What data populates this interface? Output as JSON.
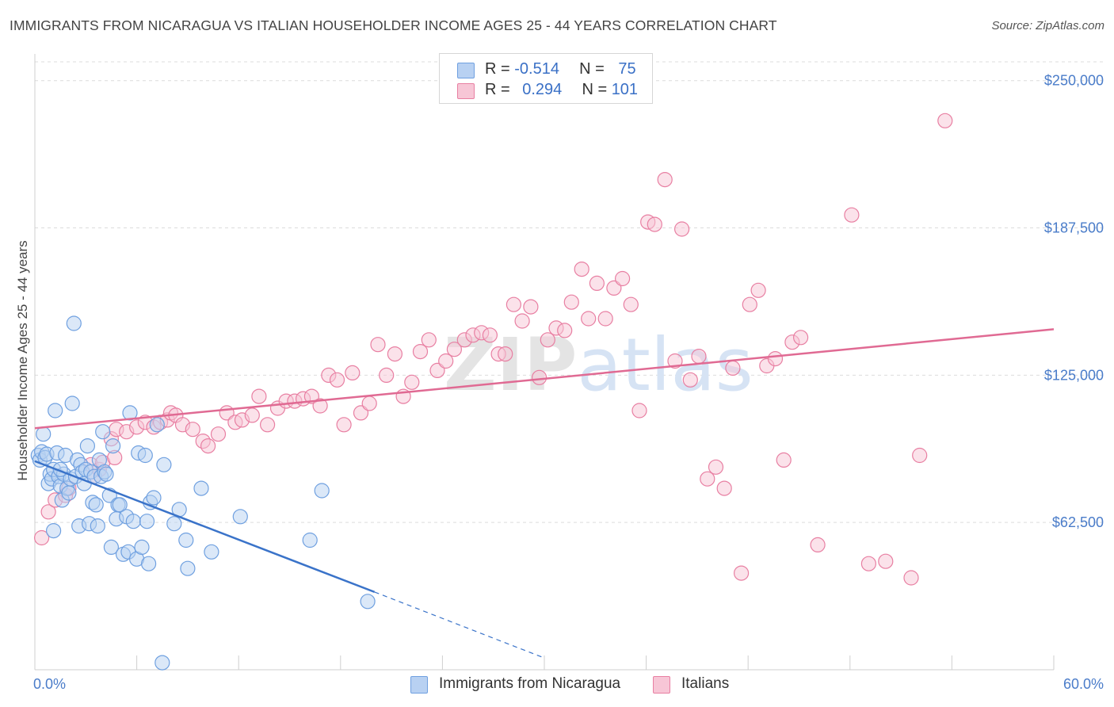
{
  "title": "IMMIGRANTS FROM NICARAGUA VS ITALIAN HOUSEHOLDER INCOME AGES 25 - 44 YEARS CORRELATION CHART",
  "source": "Source: ZipAtlas.com",
  "watermark": "ZIPatlas",
  "colors": {
    "blue": "#6fa0e0",
    "blue_fill": "#b8d1f2",
    "blue_line": "#3a73c9",
    "pink": "#e87fa2",
    "pink_fill": "#f7c6d6",
    "pink_line": "#e06a93",
    "tick_text": "#4a7cc9",
    "grid": "#dcdcdc"
  },
  "legend": {
    "rows": [
      {
        "r_label": "R =",
        "r_value": "-0.514",
        "n_label": "N =",
        "n_value": "75"
      },
      {
        "r_label": "R =",
        "r_value": "0.294",
        "n_label": "N =",
        "n_value": "101"
      }
    ]
  },
  "bottom_legend": [
    "Immigrants from Nicaragua",
    "Italians"
  ],
  "chart_data": {
    "type": "scatter",
    "xlabel": "",
    "ylabel": "Householder Income Ages 25 - 44 years",
    "xlim": [
      0,
      60
    ],
    "ylim": [
      0,
      260000
    ],
    "x_tick_labels": [
      "0.0%",
      "60.0%"
    ],
    "y_tick_values": [
      62500,
      125000,
      187500,
      250000
    ],
    "y_tick_labels": [
      "$62,500",
      "$125,000",
      "$187,500",
      "$250,000"
    ],
    "grid": "horizontal dashed",
    "legend_position": "top-center",
    "series": [
      {
        "name": "Immigrants from Nicaragua",
        "color": "#6fa0e0",
        "trend": {
          "x0": 0,
          "y0": 88500,
          "x1": 20,
          "y1": 33000,
          "dashed_to_x": 30,
          "dashed_to_y": 5000
        },
        "points": [
          [
            0.2,
            91000
          ],
          [
            0.3,
            89000
          ],
          [
            0.4,
            92500
          ],
          [
            0.5,
            100000
          ],
          [
            0.6,
            90000
          ],
          [
            0.7,
            91500
          ],
          [
            0.8,
            79000
          ],
          [
            0.9,
            83000
          ],
          [
            1.0,
            81000
          ],
          [
            1.1,
            85000
          ],
          [
            1.1,
            59000
          ],
          [
            1.2,
            110000
          ],
          [
            1.3,
            92000
          ],
          [
            1.4,
            82000
          ],
          [
            1.5,
            78000
          ],
          [
            1.6,
            72000
          ],
          [
            1.7,
            83000
          ],
          [
            1.8,
            91000
          ],
          [
            1.9,
            77000
          ],
          [
            2.0,
            75000
          ],
          [
            2.1,
            81000
          ],
          [
            2.2,
            113000
          ],
          [
            2.3,
            147000
          ],
          [
            2.4,
            82000
          ],
          [
            2.5,
            89000
          ],
          [
            2.6,
            61000
          ],
          [
            2.7,
            87000
          ],
          [
            2.8,
            84000
          ],
          [
            2.9,
            79000
          ],
          [
            3.0,
            85000
          ],
          [
            3.1,
            95000
          ],
          [
            3.2,
            62000
          ],
          [
            3.3,
            84000
          ],
          [
            3.4,
            71000
          ],
          [
            3.5,
            82000
          ],
          [
            3.6,
            70000
          ],
          [
            3.7,
            61000
          ],
          [
            3.8,
            89000
          ],
          [
            3.9,
            82000
          ],
          [
            4.0,
            101000
          ],
          [
            4.1,
            84000
          ],
          [
            4.2,
            83000
          ],
          [
            4.4,
            74000
          ],
          [
            4.5,
            52000
          ],
          [
            4.6,
            95000
          ],
          [
            4.8,
            64000
          ],
          [
            4.9,
            70000
          ],
          [
            5.0,
            70000
          ],
          [
            5.2,
            49000
          ],
          [
            5.4,
            65000
          ],
          [
            5.5,
            50000
          ],
          [
            5.6,
            109000
          ],
          [
            5.8,
            63000
          ],
          [
            6.0,
            47000
          ],
          [
            6.1,
            92000
          ],
          [
            6.3,
            52000
          ],
          [
            6.5,
            91000
          ],
          [
            6.6,
            63000
          ],
          [
            6.7,
            45000
          ],
          [
            6.8,
            71000
          ],
          [
            7.0,
            73000
          ],
          [
            7.2,
            104000
          ],
          [
            7.6,
            87000
          ],
          [
            8.2,
            62000
          ],
          [
            8.5,
            68000
          ],
          [
            8.9,
            55000
          ],
          [
            9.0,
            43000
          ],
          [
            9.8,
            77000
          ],
          [
            10.4,
            50000
          ],
          [
            12.1,
            65000
          ],
          [
            16.2,
            55000
          ],
          [
            16.9,
            76000
          ],
          [
            19.6,
            29000
          ],
          [
            7.5,
            3000
          ],
          [
            1.5,
            85000
          ]
        ]
      },
      {
        "name": "Italians",
        "color": "#e87fa2",
        "trend": {
          "x0": 0,
          "y0": 102500,
          "x1": 60,
          "y1": 144500
        },
        "points": [
          [
            0.4,
            56000
          ],
          [
            0.8,
            67000
          ],
          [
            1.2,
            72000
          ],
          [
            1.8,
            74000
          ],
          [
            2.0,
            77000
          ],
          [
            3.3,
            87000
          ],
          [
            3.5,
            82000
          ],
          [
            3.8,
            85000
          ],
          [
            4.0,
            88000
          ],
          [
            4.5,
            98000
          ],
          [
            4.7,
            90000
          ],
          [
            4.8,
            102000
          ],
          [
            5.4,
            101000
          ],
          [
            6.0,
            103000
          ],
          [
            6.5,
            105000
          ],
          [
            7.0,
            103000
          ],
          [
            7.4,
            105000
          ],
          [
            7.8,
            106000
          ],
          [
            8.0,
            109000
          ],
          [
            8.3,
            108000
          ],
          [
            8.7,
            104000
          ],
          [
            9.3,
            102000
          ],
          [
            9.9,
            97000
          ],
          [
            10.2,
            95000
          ],
          [
            10.8,
            100000
          ],
          [
            11.3,
            109000
          ],
          [
            11.8,
            105000
          ],
          [
            12.2,
            106000
          ],
          [
            12.8,
            108000
          ],
          [
            13.2,
            116000
          ],
          [
            13.7,
            104000
          ],
          [
            14.3,
            111000
          ],
          [
            14.8,
            114000
          ],
          [
            15.3,
            114000
          ],
          [
            15.8,
            115000
          ],
          [
            16.3,
            116000
          ],
          [
            16.8,
            112000
          ],
          [
            17.3,
            125000
          ],
          [
            17.8,
            123000
          ],
          [
            18.2,
            104000
          ],
          [
            18.7,
            126000
          ],
          [
            19.2,
            109000
          ],
          [
            19.7,
            113000
          ],
          [
            20.2,
            138000
          ],
          [
            20.7,
            125000
          ],
          [
            21.2,
            134000
          ],
          [
            21.7,
            116000
          ],
          [
            22.2,
            122000
          ],
          [
            22.7,
            135000
          ],
          [
            23.2,
            140000
          ],
          [
            23.7,
            127000
          ],
          [
            24.2,
            131000
          ],
          [
            24.7,
            136000
          ],
          [
            25.3,
            140000
          ],
          [
            25.8,
            142000
          ],
          [
            26.3,
            143000
          ],
          [
            26.8,
            142000
          ],
          [
            27.3,
            134000
          ],
          [
            27.7,
            134000
          ],
          [
            28.2,
            155000
          ],
          [
            28.7,
            148000
          ],
          [
            29.2,
            154000
          ],
          [
            29.7,
            124000
          ],
          [
            30.2,
            140000
          ],
          [
            30.7,
            145000
          ],
          [
            31.2,
            144000
          ],
          [
            31.6,
            156000
          ],
          [
            32.2,
            170000
          ],
          [
            32.6,
            149000
          ],
          [
            33.1,
            164000
          ],
          [
            33.6,
            149000
          ],
          [
            34.1,
            162000
          ],
          [
            34.6,
            166000
          ],
          [
            35.1,
            155000
          ],
          [
            35.6,
            110000
          ],
          [
            36.1,
            190000
          ],
          [
            36.5,
            189000
          ],
          [
            37.1,
            208000
          ],
          [
            37.7,
            131000
          ],
          [
            38.1,
            187000
          ],
          [
            38.6,
            123000
          ],
          [
            39.1,
            133000
          ],
          [
            39.6,
            81000
          ],
          [
            40.1,
            86000
          ],
          [
            40.6,
            77000
          ],
          [
            41.1,
            128000
          ],
          [
            41.6,
            41000
          ],
          [
            42.1,
            155000
          ],
          [
            42.6,
            161000
          ],
          [
            43.1,
            129000
          ],
          [
            43.6,
            132000
          ],
          [
            44.1,
            89000
          ],
          [
            44.6,
            139000
          ],
          [
            45.1,
            141000
          ],
          [
            46.1,
            53000
          ],
          [
            48.1,
            193000
          ],
          [
            49.1,
            45000
          ],
          [
            50.1,
            46000
          ],
          [
            51.6,
            39000
          ],
          [
            52.1,
            91000
          ],
          [
            53.6,
            233000
          ]
        ]
      }
    ]
  }
}
